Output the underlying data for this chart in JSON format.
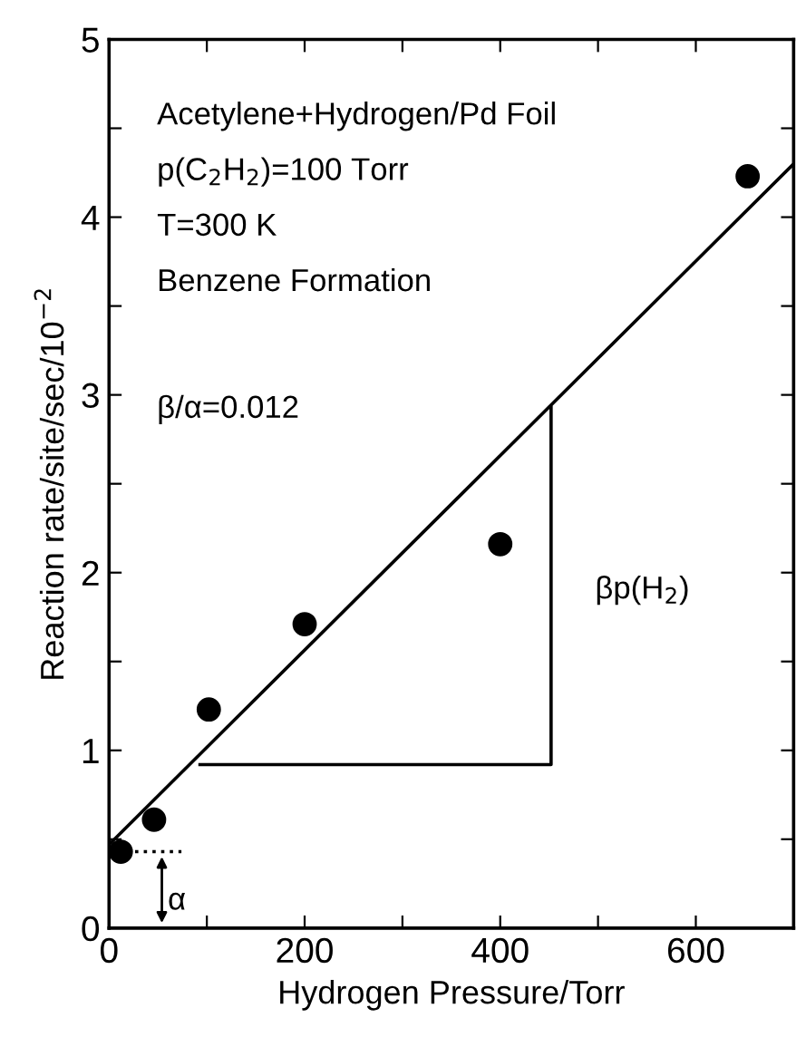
{
  "chart_data": {
    "type": "scatter",
    "xlabel": "Hydrogen Pressure/Torr",
    "ylabel": "Reaction rate/site/sec/10$^{−2}$",
    "xlim": [
      0,
      700
    ],
    "ylim": [
      0,
      5
    ],
    "xticks": [
      0,
      {
        "value": 100,
        "label": null
      },
      200,
      {
        "value": 300,
        "label": null
      },
      400,
      {
        "value": 500,
        "label": null
      },
      600,
      {
        "value": 700,
        "label": null
      }
    ],
    "yticks": [
      0,
      {
        "value": 0.5,
        "label": null
      },
      1,
      {
        "value": 1.5,
        "label": null
      },
      2,
      {
        "value": 2.5,
        "label": null
      },
      3,
      {
        "value": 3.5,
        "label": null
      },
      4,
      {
        "value": 4.5,
        "label": null
      },
      5
    ],
    "grid": false,
    "legend": false,
    "marker": "circle",
    "series": [
      {
        "color": "#000000",
        "x": [
          12,
          46,
          102,
          200,
          400,
          653
        ],
        "values": [
          0.43,
          0.61,
          1.23,
          1.71,
          2.16,
          4.23
        ]
      },
      {
        "type": "line",
        "color": "#000000",
        "line_style": "solid",
        "marker": "none",
        "x": [
          0,
          700
        ],
        "values": [
          0.47,
          4.3
        ]
      },
      {
        "type": "line",
        "color": "#000000",
        "line_style": "solid",
        "marker": "none",
        "x": [
          93,
          452,
          452
        ],
        "values": [
          0.92,
          0.92,
          2.93
        ]
      },
      {
        "type": "line",
        "color": "#000000",
        "line_style": "dotted",
        "marker": "none",
        "x": [
          0,
          74
        ],
        "values": [
          0.43,
          0.43
        ]
      }
    ],
    "annotations": [
      "Acetylene+Hydrogen/Pd Foil",
      "p(C$_{2}$H$_{2}$)=100 Torr",
      "T=300 K",
      "Benzene Formation",
      "β/α=0.012",
      {
        "text": "βp(H$_{2}$)",
        "x": 452,
        "y": 1.9
      },
      {
        "text": "α",
        "x": 54,
        "y": 0.43
      }
    ]
  }
}
